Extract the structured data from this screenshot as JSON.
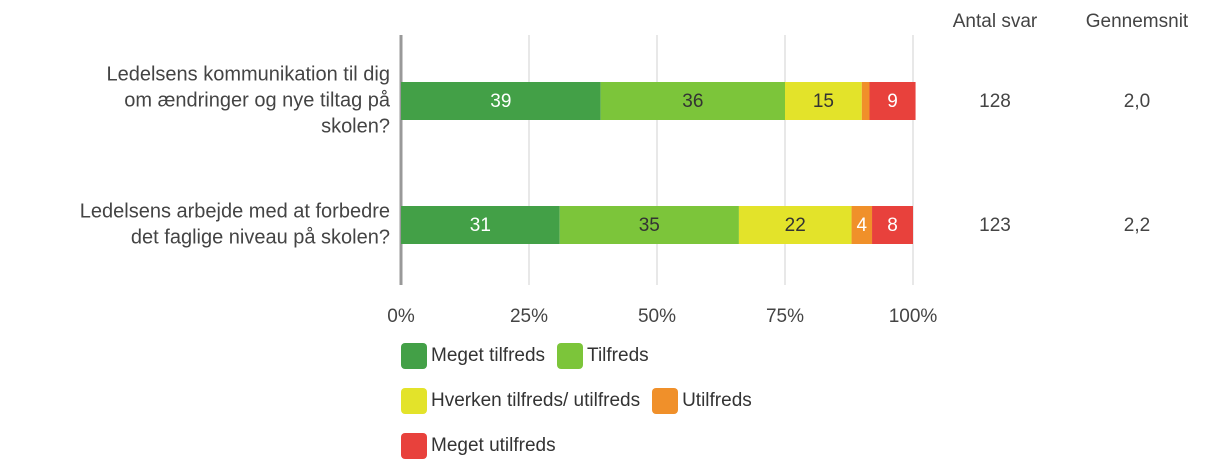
{
  "chart_data": {
    "type": "stacked_bar_horizontal",
    "categories": [
      [
        "Ledelsens kommunikation til dig",
        "om ændringer og nye tiltag på",
        "skolen?"
      ],
      [
        "Ledelsens arbejde med at forbedre",
        "det faglige niveau på skolen?"
      ]
    ],
    "series": [
      {
        "name": "Meget tilfreds",
        "color": "#43a047",
        "label_color": "#ffffff",
        "values": [
          39,
          31
        ]
      },
      {
        "name": "Tilfreds",
        "color": "#7cc53a",
        "label_color": "#333333",
        "values": [
          36,
          35
        ]
      },
      {
        "name": "Hverken tilfreds/ utilfreds",
        "color": "#e3e32a",
        "label_color": "#333333",
        "values": [
          15,
          22
        ]
      },
      {
        "name": "Utilfreds",
        "color": "#f0902a",
        "label_color": "#ffffff",
        "values": [
          1.5,
          4
        ],
        "value_labels": [
          null,
          "4"
        ]
      },
      {
        "name": "Meget utilfreds",
        "color": "#e8413c",
        "label_color": "#ffffff",
        "values": [
          9,
          8
        ]
      }
    ],
    "xlim": [
      0,
      100
    ],
    "xticks": [
      {
        "value": 0,
        "label": "0%"
      },
      {
        "value": 25,
        "label": "25%"
      },
      {
        "value": 50,
        "label": "50%"
      },
      {
        "value": 75,
        "label": "75%"
      },
      {
        "value": 100,
        "label": "100%"
      }
    ],
    "grid": true,
    "columns": [
      {
        "header": "Antal svar",
        "values": [
          128,
          123
        ]
      },
      {
        "header": "Gennemsnit",
        "values": [
          2.0,
          2.2
        ],
        "value_labels": [
          "2,0",
          "2,2"
        ]
      }
    ]
  }
}
